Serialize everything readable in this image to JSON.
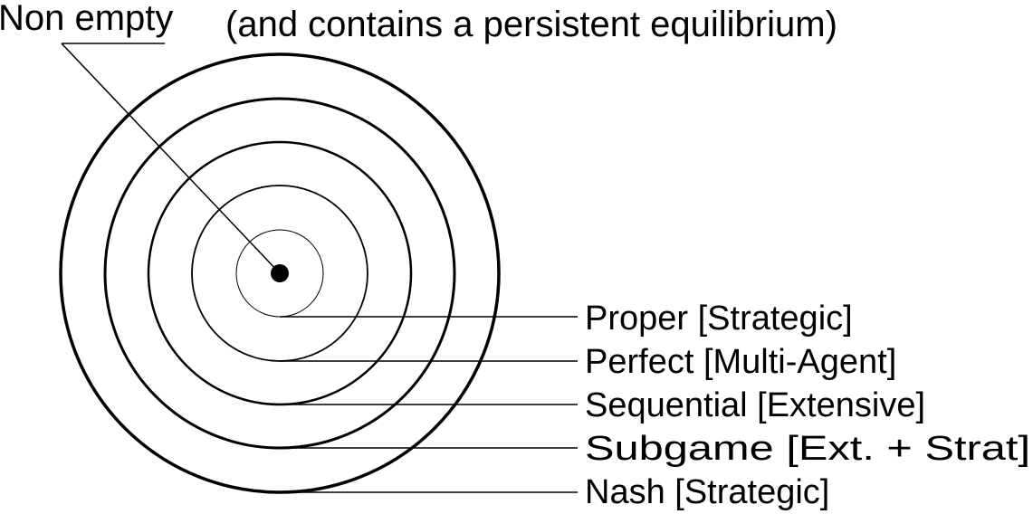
{
  "header": {
    "title": "Non empty",
    "subtitle": "(and contains a persistent equilibrium)"
  },
  "concepts": [
    {
      "label": "Proper [Strategic]"
    },
    {
      "label": "Perfect [Multi-Agent]"
    },
    {
      "label": "Sequential [Extensive]"
    },
    {
      "label": "Subgame [Ext. + Strat]"
    },
    {
      "label": "Nash [Strategic]"
    }
  ],
  "colors": {
    "stroke": "#000000",
    "background": "#ffffff"
  }
}
